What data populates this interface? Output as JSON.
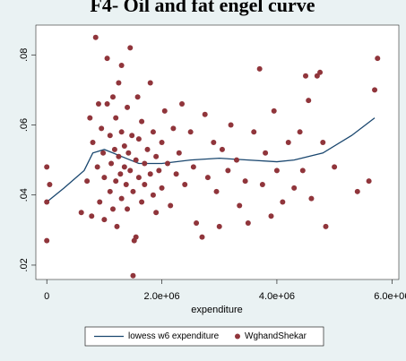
{
  "chart_data": {
    "type": "scatter",
    "title": "F4- Oil and fat engel curve",
    "x_label": "expenditure",
    "xlim": [
      -190000,
      6120000
    ],
    "ylim": [
      0.0159,
      0.0885
    ],
    "xticks": [
      0,
      {
        "value": 2000000,
        "label": "2.0e+06"
      },
      {
        "value": 4000000,
        "label": "4.0e+06"
      },
      {
        "value": 6000000,
        "label": "6.0e+06"
      }
    ],
    "yticks": [
      {
        "value": 0.02,
        "label": ".02"
      },
      {
        "value": 0.04,
        "label": ".04"
      },
      {
        "value": 0.06,
        "label": ".06"
      },
      {
        "value": 0.08,
        "label": ".08"
      }
    ],
    "series": [
      {
        "name": "lowess w6 expenditure",
        "color": "#1a476f",
        "type": "line",
        "x": [
          0,
          300000,
          650000,
          800000,
          1000000,
          1300000,
          1600000,
          2000000,
          2500000,
          3000000,
          3500000,
          4000000,
          4300000,
          4800000,
          5300000,
          5700000
        ],
        "values": [
          0.038,
          0.042,
          0.047,
          0.052,
          0.053,
          0.051,
          0.049,
          0.049,
          0.05,
          0.0505,
          0.05,
          0.0495,
          0.05,
          0.052,
          0.057,
          0.062
        ]
      },
      {
        "name": "WghandShekar",
        "color": "#90353b",
        "type": "scatter",
        "x": [
          0,
          0,
          0,
          50000,
          600000,
          700000,
          750000,
          780000,
          800000,
          850000,
          880000,
          900000,
          920000,
          950000,
          980000,
          1000000,
          1000000,
          1050000,
          1050000,
          1100000,
          1100000,
          1120000,
          1150000,
          1150000,
          1180000,
          1200000,
          1200000,
          1220000,
          1250000,
          1250000,
          1280000,
          1300000,
          1300000,
          1300000,
          1350000,
          1350000,
          1380000,
          1400000,
          1400000,
          1420000,
          1450000,
          1450000,
          1480000,
          1500000,
          1500000,
          1520000,
          1550000,
          1550000,
          1580000,
          1600000,
          1600000,
          1650000,
          1650000,
          1700000,
          1700000,
          1750000,
          1800000,
          1800000,
          1850000,
          1850000,
          1900000,
          1900000,
          1950000,
          2000000,
          2000000,
          2050000,
          2100000,
          2150000,
          2200000,
          2250000,
          2300000,
          2350000,
          2400000,
          2500000,
          2550000,
          2600000,
          2700000,
          2750000,
          2800000,
          2900000,
          2950000,
          3000000,
          3050000,
          3150000,
          3200000,
          3300000,
          3350000,
          3450000,
          3500000,
          3600000,
          3700000,
          3750000,
          3800000,
          3900000,
          3950000,
          4000000,
          4100000,
          4200000,
          4300000,
          4400000,
          4450000,
          4500000,
          4550000,
          4600000,
          4700000,
          4750000,
          4800000,
          4850000,
          5000000,
          5400000,
          5600000,
          5700000,
          5750000
        ],
        "values": [
          0.048,
          0.038,
          0.027,
          0.043,
          0.035,
          0.044,
          0.062,
          0.034,
          0.055,
          0.085,
          0.048,
          0.066,
          0.038,
          0.059,
          0.052,
          0.045,
          0.033,
          0.079,
          0.066,
          0.041,
          0.057,
          0.049,
          0.068,
          0.036,
          0.053,
          0.062,
          0.044,
          0.031,
          0.072,
          0.051,
          0.046,
          0.077,
          0.058,
          0.039,
          0.054,
          0.048,
          0.043,
          0.065,
          0.036,
          0.052,
          0.082,
          0.047,
          0.057,
          0.041,
          0.017,
          0.027,
          0.028,
          0.05,
          0.068,
          0.045,
          0.056,
          0.038,
          0.061,
          0.049,
          0.043,
          0.053,
          0.072,
          0.046,
          0.04,
          0.058,
          0.051,
          0.035,
          0.047,
          0.055,
          0.042,
          0.064,
          0.049,
          0.037,
          0.059,
          0.046,
          0.052,
          0.066,
          0.043,
          0.058,
          0.048,
          0.032,
          0.028,
          0.063,
          0.045,
          0.055,
          0.041,
          0.031,
          0.053,
          0.047,
          0.06,
          0.05,
          0.037,
          0.044,
          0.032,
          0.058,
          0.076,
          0.043,
          0.052,
          0.034,
          0.064,
          0.047,
          0.038,
          0.055,
          0.042,
          0.058,
          0.047,
          0.074,
          0.067,
          0.039,
          0.074,
          0.075,
          0.055,
          0.031,
          0.048,
          0.041,
          0.044,
          0.07,
          0.079
        ]
      }
    ]
  }
}
